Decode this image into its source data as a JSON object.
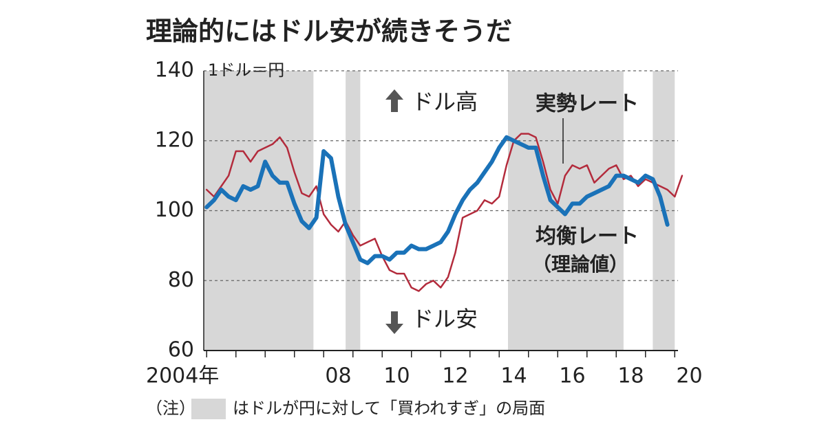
{
  "chart_data": {
    "type": "line",
    "title": "理論的にはドル安が続きそうだ",
    "unit_label": "1ドル＝円",
    "annotations": {
      "up": "ドル高",
      "down": "ドル安",
      "blue_note": "（理論値）"
    },
    "note": {
      "prefix": "（注）",
      "text": "はドルが円に対して「買われすぎ」の局面"
    },
    "xlim": [
      2003.9,
      2020.3
    ],
    "minor_xticks": [
      2004,
      2005,
      2006,
      2007,
      2008,
      2009,
      2010,
      2011,
      2012,
      2013,
      2014,
      2015,
      2016,
      2017,
      2018,
      2019,
      2020
    ],
    "xticks": [
      {
        "value": 2004.5,
        "label": "2004年"
      },
      {
        "value": 2008.5,
        "label": "08"
      },
      {
        "value": 2010.5,
        "label": "10"
      },
      {
        "value": 2012.5,
        "label": "12"
      },
      {
        "value": 2014.5,
        "label": "14"
      },
      {
        "value": 2016.5,
        "label": "16"
      },
      {
        "value": 2018.5,
        "label": "18"
      },
      {
        "value": 2020.5,
        "label": "20"
      }
    ],
    "ylim": [
      60,
      140
    ],
    "yticks": [
      60,
      80,
      100,
      120,
      140
    ],
    "grid": true,
    "shaded_periods": [
      [
        2003.9,
        2007.65
      ],
      [
        2008.75,
        2009.25
      ],
      [
        2014.3,
        2018.25
      ],
      [
        2019.25,
        2020.0
      ]
    ],
    "shade_color": "#d7d7d7",
    "x": [
      2004,
      2004.25,
      2004.5,
      2004.75,
      2005,
      2005.25,
      2005.5,
      2005.75,
      2006,
      2006.25,
      2006.5,
      2006.75,
      2007,
      2007.25,
      2007.5,
      2007.75,
      2008,
      2008.25,
      2008.5,
      2008.75,
      2009,
      2009.25,
      2009.5,
      2009.75,
      2010,
      2010.25,
      2010.5,
      2010.75,
      2011,
      2011.25,
      2011.5,
      2011.75,
      2012,
      2012.25,
      2012.5,
      2012.75,
      2013,
      2013.25,
      2013.5,
      2013.75,
      2014,
      2014.25,
      2014.5,
      2014.75,
      2015,
      2015.25,
      2015.5,
      2015.75,
      2016,
      2016.25,
      2016.5,
      2016.75,
      2017,
      2017.25,
      2017.5,
      2017.75,
      2018,
      2018.25,
      2018.5,
      2018.75,
      2019,
      2019.25,
      2019.5,
      2019.75,
      2020,
      2020.25
    ],
    "series": [
      {
        "name": "実勢レート",
        "color": "#b32b3c",
        "width": 2.5,
        "values": [
          106,
          104,
          107,
          110,
          117,
          117,
          114,
          117,
          118,
          119,
          121,
          118,
          111,
          105,
          104,
          107,
          99,
          96,
          94,
          97,
          93,
          90,
          91,
          92,
          87,
          83,
          82,
          82,
          78,
          77,
          79,
          80,
          78,
          81,
          88,
          98,
          99,
          100,
          103,
          102,
          104,
          113,
          120,
          122,
          122,
          121,
          114,
          106,
          102,
          110,
          113,
          112,
          113,
          108,
          110,
          112,
          113,
          109,
          110,
          107,
          109,
          108,
          107,
          106,
          104,
          110
        ]
      },
      {
        "name": "均衡レート",
        "color": "#1a72b8",
        "width": 6,
        "values": [
          101,
          103,
          106,
          104,
          103,
          107,
          106,
          107,
          114,
          110,
          108,
          108,
          102,
          97,
          95,
          98,
          117,
          115,
          104,
          96,
          91,
          86,
          85,
          87,
          87,
          86,
          88,
          88,
          90,
          89,
          89,
          90,
          91,
          94,
          99,
          103,
          106,
          108,
          111,
          114,
          118,
          121,
          120,
          119,
          118,
          118,
          110,
          103,
          101,
          99,
          102,
          102,
          104,
          105,
          106,
          107,
          110,
          110,
          109,
          108,
          110,
          109,
          104,
          96,
          null,
          null
        ]
      }
    ]
  }
}
